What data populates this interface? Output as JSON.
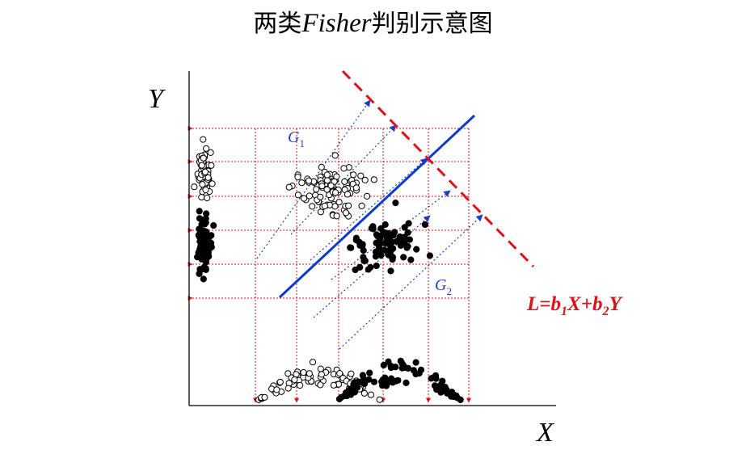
{
  "title": {
    "prefix": "两类",
    "italic": "Fisher",
    "suffix": "判别示意图"
  },
  "axes": {
    "x_label": "X",
    "y_label": "Y"
  },
  "groups": [
    {
      "label": "G",
      "sub": "1",
      "color": "#1f3fbf",
      "marker": "hollow-circle"
    },
    {
      "label": "G",
      "sub": "2",
      "color": "#1f3fbf",
      "marker": "filled-circle"
    }
  ],
  "discriminant": {
    "parts": [
      {
        "t": "L=b",
        "sub": false
      },
      {
        "t": "1",
        "sub": true
      },
      {
        "t": "X+b",
        "sub": false
      },
      {
        "t": "2",
        "sub": true
      },
      {
        "t": "Y",
        "sub": false
      }
    ],
    "color": "#e0101a"
  },
  "colors": {
    "grid": "#e0101a",
    "arrows": "#1f3fbf",
    "boundary": "#0a3ad0",
    "projection_line": "#e0101a"
  }
}
